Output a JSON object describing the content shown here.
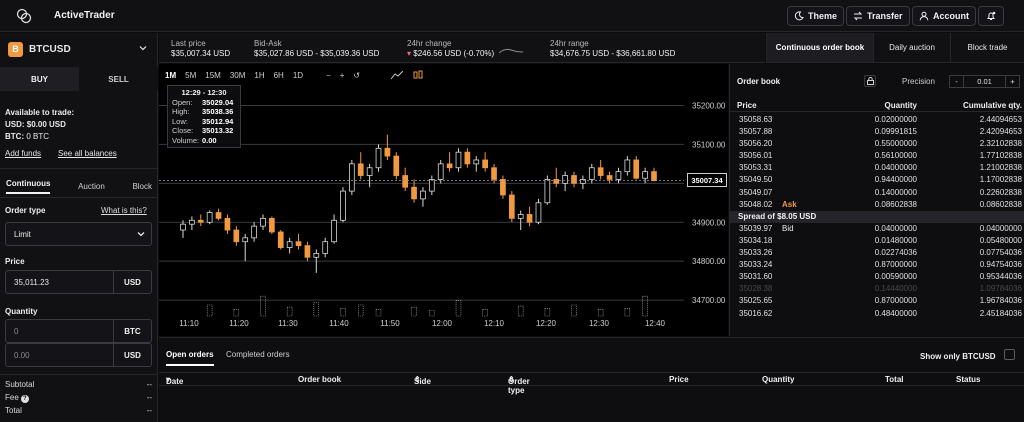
{
  "app": {
    "name": "ActiveTrader"
  },
  "nav": {
    "theme": "Theme",
    "transfer": "Transfer",
    "account": "Account"
  },
  "symbol": {
    "icon_letter": "B",
    "pair": "BTCUSD"
  },
  "trade_side": {
    "buy": "BUY",
    "sell": "SELL"
  },
  "balances": {
    "title": "Available to trade:",
    "usd": "USD: $0.00 USD",
    "btc_label": "BTC:",
    "btc_value": "0 BTC",
    "add_funds": "Add funds",
    "see_all": "See all balances"
  },
  "order_form": {
    "modes": [
      "Continuous",
      "Auction",
      "Block"
    ],
    "order_type_label": "Order type",
    "what_is_this": "What is this?",
    "order_type_value": "Limit",
    "price_label": "Price",
    "price_value": "35,011.23",
    "price_unit": "USD",
    "quantity_label": "Quantity",
    "qty_placeholder": "0",
    "qty_unit": "BTC",
    "total_placeholder": "0.00",
    "total_unit": "USD",
    "subtotal": "Subtotal",
    "fee": "Fee",
    "total": "Total",
    "dash": "--"
  },
  "ticker": {
    "last_price_label": "Last price",
    "last_price": "$35,007.34 USD",
    "bid_ask_label": "Bid-Ask",
    "bid_ask": "$35,027.86 USD - $35,039.36 USD",
    "change_label": "24hr change",
    "change": "$246.56 USD (-0.70%)",
    "range_label": "24hr range",
    "range": "$34,676.75 USD - $36,661.80 USD"
  },
  "chart": {
    "timeframes": [
      "1M",
      "5M",
      "15M",
      "30M",
      "1H",
      "6H",
      "1D"
    ],
    "active_timeframe": "1M",
    "ohlc": {
      "time": "12:29 - 12:30",
      "open_label": "Open:",
      "open": "35029.04",
      "high_label": "High:",
      "high": "35038.36",
      "low_label": "Low:",
      "low": "35012.94",
      "close_label": "Close:",
      "close": "35013.32",
      "volume_label": "Volume:",
      "volume": "0.00"
    },
    "current_price": "35007.34",
    "colors": {
      "up": "#d8d8d8",
      "down": "#f0993f",
      "background": "#000000"
    }
  },
  "chart_data": {
    "type": "candlestick",
    "x_ticks": [
      "11:10",
      "11:20",
      "11:30",
      "11:40",
      "11:50",
      "12:00",
      "12:10",
      "12:20",
      "12:30",
      "12:40"
    ],
    "y_ticks": [
      "35200.00",
      "35100.00",
      "35000.00",
      "34900.00",
      "34800.00",
      "34700.00"
    ],
    "ylim": [
      34690,
      35250
    ],
    "candles": [
      [
        34880,
        34905,
        34860,
        34895
      ],
      [
        34895,
        34915,
        34880,
        34905
      ],
      [
        34905,
        34920,
        34890,
        34900
      ],
      [
        34900,
        34930,
        34895,
        34925
      ],
      [
        34925,
        34935,
        34905,
        34910
      ],
      [
        34910,
        34920,
        34870,
        34880
      ],
      [
        34880,
        34890,
        34840,
        34850
      ],
      [
        34850,
        34870,
        34800,
        34860
      ],
      [
        34860,
        34900,
        34850,
        34890
      ],
      [
        34890,
        34920,
        34880,
        34910
      ],
      [
        34910,
        34915,
        34870,
        34875
      ],
      [
        34875,
        34880,
        34830,
        34835
      ],
      [
        34835,
        34860,
        34820,
        34850
      ],
      [
        34850,
        34870,
        34830,
        34840
      ],
      [
        34840,
        34850,
        34800,
        34810
      ],
      [
        34810,
        34830,
        34770,
        34820
      ],
      [
        34820,
        34860,
        34810,
        34850
      ],
      [
        34850,
        34920,
        34845,
        34905
      ],
      [
        34905,
        34990,
        34900,
        34980
      ],
      [
        34980,
        35060,
        34970,
        35050
      ],
      [
        35050,
        35080,
        35010,
        35020
      ],
      [
        35020,
        35050,
        34990,
        35040
      ],
      [
        35040,
        35100,
        35030,
        35090
      ],
      [
        35090,
        35125,
        35060,
        35070
      ],
      [
        35070,
        35080,
        35010,
        35020
      ],
      [
        35020,
        35040,
        34980,
        34990
      ],
      [
        34990,
        35010,
        34950,
        34960
      ],
      [
        34960,
        34990,
        34940,
        34980
      ],
      [
        34980,
        35020,
        34970,
        35010
      ],
      [
        35010,
        35060,
        35000,
        35050
      ],
      [
        35050,
        35080,
        35030,
        35040
      ],
      [
        35040,
        35090,
        35030,
        35080
      ],
      [
        35080,
        35090,
        35040,
        35050
      ],
      [
        35050,
        35070,
        35030,
        35060
      ],
      [
        35060,
        35080,
        35030,
        35040
      ],
      [
        35040,
        35050,
        35000,
        35010
      ],
      [
        35010,
        35020,
        34960,
        34970
      ],
      [
        34970,
        34980,
        34900,
        34910
      ],
      [
        34910,
        34930,
        34880,
        34920
      ],
      [
        34920,
        34940,
        34890,
        34900
      ],
      [
        34900,
        34960,
        34895,
        34950
      ],
      [
        34950,
        35020,
        34945,
        35010
      ],
      [
        35010,
        35040,
        34990,
        35000
      ],
      [
        35000,
        35030,
        34980,
        35020
      ],
      [
        35020,
        35030,
        34990,
        35000
      ],
      [
        35000,
        35020,
        34985,
        35010
      ],
      [
        35010,
        35050,
        35000,
        35040
      ],
      [
        35040,
        35060,
        35010,
        35020
      ],
      [
        35020,
        35030,
        35000,
        35010
      ],
      [
        35010,
        35040,
        35000,
        35030
      ],
      [
        35030,
        35070,
        35020,
        35060
      ],
      [
        35060,
        35070,
        35010,
        35013
      ],
      [
        35013,
        35040,
        35000,
        35030
      ],
      [
        35030,
        35040,
        35005,
        35007
      ]
    ],
    "volumes": [
      0,
      0,
      0,
      0,
      1,
      0,
      0,
      0,
      0,
      0,
      0,
      0,
      0,
      0,
      0,
      0,
      0,
      0,
      0,
      0,
      0,
      0,
      0,
      0,
      0,
      0,
      0,
      0,
      0,
      0,
      0,
      0,
      0,
      0,
      0,
      0,
      0,
      0,
      0,
      0,
      0,
      0,
      0,
      0,
      0,
      0,
      0,
      0,
      0,
      0,
      0,
      0,
      0,
      0
    ],
    "volume_bars": [
      {
        "i": 3,
        "v": 0.5
      },
      {
        "i": 6,
        "v": 0.3
      },
      {
        "i": 9,
        "v": 0.9
      },
      {
        "i": 12,
        "v": 0.4
      },
      {
        "i": 15,
        "v": 0.6
      },
      {
        "i": 18,
        "v": 0.35
      },
      {
        "i": 20,
        "v": 0.5
      },
      {
        "i": 22,
        "v": 0.3
      },
      {
        "i": 26,
        "v": 0.4
      },
      {
        "i": 28,
        "v": 0.25
      },
      {
        "i": 31,
        "v": 0.7
      },
      {
        "i": 34,
        "v": 0.3
      },
      {
        "i": 38,
        "v": 0.45
      },
      {
        "i": 41,
        "v": 0.35
      },
      {
        "i": 44,
        "v": 0.5
      },
      {
        "i": 47,
        "v": 0.3
      },
      {
        "i": 50,
        "v": 0.35
      },
      {
        "i": 52,
        "v": 0.9
      }
    ]
  },
  "right_tabs": [
    "Continuous order book",
    "Daily auction",
    "Block trade"
  ],
  "order_book": {
    "title": "Order book",
    "precision_label": "Precision",
    "precision_value": "0.01",
    "minus": "-",
    "plus": "+",
    "columns": [
      "Price",
      "Quantity",
      "Cumulative qty."
    ],
    "asks": [
      {
        "price": "35058.63",
        "qty": "0.02000000",
        "cum": "2.44094653",
        "label": ""
      },
      {
        "price": "35057.88",
        "qty": "0.09991815",
        "cum": "2.42094653",
        "label": ""
      },
      {
        "price": "35056.20",
        "qty": "0.55000000",
        "cum": "2.32102838",
        "label": ""
      },
      {
        "price": "35056.01",
        "qty": "0.56100000",
        "cum": "1.77102838",
        "label": ""
      },
      {
        "price": "35053.31",
        "qty": "0.04000000",
        "cum": "1.21002838",
        "label": ""
      },
      {
        "price": "35049.50",
        "qty": "0.94400000",
        "cum": "1.17002838",
        "label": ""
      },
      {
        "price": "35049.07",
        "qty": "0.14000000",
        "cum": "0.22602838",
        "label": ""
      },
      {
        "price": "35048.02",
        "qty": "0.08602838",
        "cum": "0.08602838",
        "label": "Ask"
      }
    ],
    "spread": "Spread of $8.05 USD",
    "bids": [
      {
        "price": "35039.97",
        "qty": "0.04000000",
        "cum": "0.04000000",
        "label": "Bid",
        "faded": false
      },
      {
        "price": "35034.18",
        "qty": "0.01480000",
        "cum": "0.05480000",
        "label": "",
        "faded": false
      },
      {
        "price": "35033.26",
        "qty": "0.02274036",
        "cum": "0.07754036",
        "label": "",
        "faded": false
      },
      {
        "price": "35033.24",
        "qty": "0.87000000",
        "cum": "0.94754036",
        "label": "",
        "faded": false
      },
      {
        "price": "35031.60",
        "qty": "0.00590000",
        "cum": "0.95344036",
        "label": "",
        "faded": false
      },
      {
        "price": "35028.38",
        "qty": "0.14440000",
        "cum": "1.09784036",
        "label": "",
        "faded": true
      },
      {
        "price": "35025.65",
        "qty": "0.87000000",
        "cum": "1.96784036",
        "label": "",
        "faded": false
      },
      {
        "price": "35016.62",
        "qty": "0.48400000",
        "cum": "2.45184036",
        "label": "",
        "faded": false
      }
    ]
  },
  "orders": {
    "tabs": [
      "Open orders",
      "Completed orders"
    ],
    "show_only": "Show only BTCUSD",
    "columns": [
      "Date",
      "Order book",
      "Side",
      "Order type",
      "Price",
      "Quantity",
      "Total",
      "Status"
    ]
  }
}
